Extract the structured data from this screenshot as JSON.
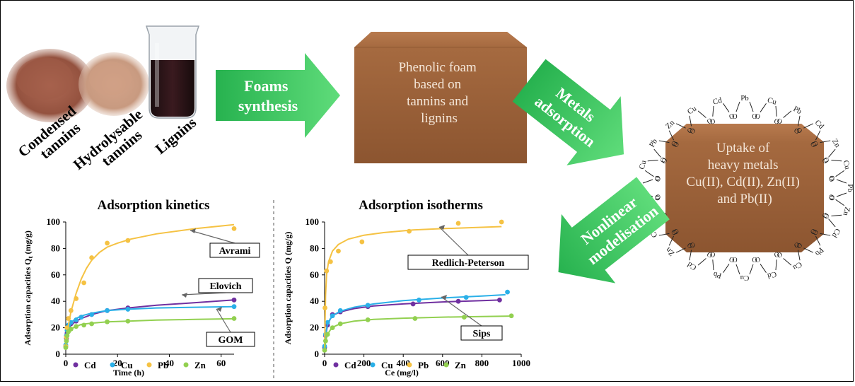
{
  "materials": {
    "condensed": [
      "Condensed",
      "tannins"
    ],
    "hydrolysable": [
      "Hydrolysable",
      "tannins"
    ],
    "lignins": "Lignins"
  },
  "arrows": {
    "synthesis": [
      "Foams",
      "synthesis"
    ],
    "adsorption": [
      "Metals",
      "adsorption"
    ],
    "modelisation": [
      "Nonlinear",
      "modelisation"
    ]
  },
  "foam_text": [
    "Phenolic foam",
    "based on",
    "tannins and",
    "lignins"
  ],
  "uptake_text": [
    "Uptake of",
    "heavy metals",
    "Cu(II), Cd(II), Zn(II)",
    "and Pb(II)"
  ],
  "metal_labels": [
    "Pb",
    "Cu",
    "Pb",
    "Cd",
    "Zn",
    "Cu",
    "Pb",
    "Zn",
    "Cd",
    "Pb",
    "Cu",
    "Cd",
    "Cu",
    "Pb",
    "Cd",
    "Zn",
    "Cu",
    "Pb",
    "Cd",
    "Cu",
    "Pb",
    "Zn",
    "Cu",
    "Cd"
  ],
  "colors": {
    "Cd": "#7030a0",
    "Cu": "#2ab0e8",
    "Pb": "#f5c243",
    "Zn": "#92d050",
    "arrow": "#2ec45a",
    "foam": "#a4683c"
  },
  "chart_data": [
    {
      "type": "scatter",
      "title": "Adsorption kinetics",
      "xlabel": "Time (h)",
      "ylabel": "Adsorption capacities Q",
      "ylabel_sub": "t",
      "ylabel_unit": " (mg/g)",
      "xlim": [
        0,
        65
      ],
      "ylim": [
        0,
        100
      ],
      "xticks": [
        0,
        20,
        40,
        60
      ],
      "yticks": [
        0,
        20,
        40,
        60,
        80,
        100
      ],
      "grid": false,
      "legend": "bottom-left",
      "annotations": [
        "Avrami",
        "Elovich",
        "GOM"
      ],
      "series": [
        {
          "name": "Cd",
          "x": [
            0,
            0.25,
            0.5,
            1,
            2,
            4,
            6,
            10,
            16,
            24,
            65
          ],
          "y": [
            6,
            12,
            16,
            20,
            23,
            25,
            28,
            30,
            33,
            35,
            41
          ],
          "fit_x": [
            0,
            0.5,
            1,
            2,
            4,
            6,
            10,
            16,
            24,
            35,
            50,
            65
          ],
          "fit_y": [
            8,
            15,
            19,
            22,
            25,
            27,
            30,
            33,
            35,
            37,
            39,
            41
          ]
        },
        {
          "name": "Cu",
          "x": [
            0,
            0.25,
            0.5,
            1,
            2,
            4,
            6,
            10,
            16,
            24,
            65
          ],
          "y": [
            7,
            14,
            18,
            22,
            24,
            26,
            28,
            30,
            33,
            34,
            36
          ],
          "fit_x": [
            0,
            0.5,
            1,
            2,
            4,
            6,
            10,
            16,
            24,
            35,
            50,
            65
          ],
          "fit_y": [
            9,
            17,
            21,
            24,
            27,
            29,
            31,
            33,
            34,
            35,
            35.5,
            36
          ]
        },
        {
          "name": "Pb",
          "x": [
            0,
            0.25,
            0.5,
            1,
            2,
            4,
            7,
            10,
            16,
            24,
            65
          ],
          "y": [
            6,
            13,
            20,
            27,
            33,
            42,
            54,
            73,
            84,
            86,
            95
          ],
          "fit_x": [
            0,
            1,
            2,
            4,
            6,
            8,
            10,
            13,
            16,
            20,
            25,
            35,
            50,
            65
          ],
          "fit_y": [
            8,
            22,
            32,
            46,
            57,
            65,
            71,
            77,
            81,
            84,
            87,
            91,
            95,
            98
          ]
        },
        {
          "name": "Zn",
          "x": [
            0,
            0.25,
            0.5,
            1,
            2,
            4,
            7,
            10,
            16,
            24,
            65
          ],
          "y": [
            5,
            10,
            14,
            17,
            19,
            21,
            22,
            23,
            24.5,
            25,
            27
          ],
          "fit_x": [
            0,
            0.5,
            1,
            2,
            4,
            6,
            10,
            16,
            24,
            35,
            50,
            65
          ],
          "fit_y": [
            7,
            13,
            16,
            19,
            21,
            22.5,
            23.5,
            24.5,
            25,
            25.8,
            26.3,
            26.8
          ]
        }
      ]
    },
    {
      "type": "scatter",
      "title": "Adsorption isotherms",
      "xlabel": "Ce (mg/l)",
      "ylabel": "Adsorption capacities Q (mg/g)",
      "xlim": [
        0,
        1000
      ],
      "ylim": [
        0,
        100
      ],
      "xticks": [
        0,
        200,
        400,
        600,
        800,
        1000
      ],
      "yticks": [
        0,
        20,
        40,
        60,
        80,
        100
      ],
      "grid": false,
      "legend": "bottom",
      "annotations": [
        "Redlich-Peterson",
        "Sips"
      ],
      "series": [
        {
          "name": "Cd",
          "x": [
            0,
            5,
            15,
            40,
            80,
            220,
            450,
            680,
            890
          ],
          "y": [
            5,
            14,
            22,
            30,
            32,
            36,
            38,
            40,
            41
          ],
          "fit_x": [
            0,
            5,
            15,
            30,
            50,
            80,
            150,
            250,
            400,
            600,
            800,
            900
          ],
          "fit_y": [
            4,
            14,
            22,
            27,
            30,
            32,
            34.5,
            36.5,
            38,
            39.5,
            40.5,
            41
          ]
        },
        {
          "name": "Cu",
          "x": [
            0,
            5,
            15,
            40,
            80,
            220,
            480,
            720,
            930
          ],
          "y": [
            6,
            15,
            24,
            29,
            33,
            37,
            41,
            43,
            47
          ],
          "fit_x": [
            0,
            5,
            15,
            30,
            50,
            80,
            150,
            250,
            400,
            600,
            800,
            920
          ],
          "fit_y": [
            5,
            15,
            23,
            27,
            30,
            32.5,
            35.5,
            38,
            40.5,
            42.5,
            44,
            45
          ]
        },
        {
          "name": "Pb",
          "x": [
            2,
            10,
            30,
            70,
            190,
            430,
            680,
            900
          ],
          "y": [
            35,
            63,
            70,
            78,
            85,
            93,
            99,
            100
          ],
          "fit_x": [
            0,
            5,
            10,
            20,
            40,
            70,
            120,
            200,
            300,
            450,
            600,
            800,
            900
          ],
          "fit_y": [
            5,
            45,
            60,
            70,
            78,
            83,
            87,
            90,
            92,
            94,
            95,
            96,
            96.5
          ]
        },
        {
          "name": "Zn",
          "x": [
            0,
            5,
            15,
            40,
            80,
            220,
            460,
            710,
            950
          ],
          "y": [
            3,
            10,
            15,
            20,
            23,
            26,
            27,
            28,
            29
          ],
          "fit_x": [
            0,
            5,
            15,
            30,
            50,
            80,
            150,
            250,
            400,
            600,
            800,
            950
          ],
          "fit_y": [
            3,
            10,
            15,
            18.5,
            21,
            23,
            25,
            26.3,
            27.2,
            28,
            28.5,
            28.8
          ]
        }
      ]
    }
  ]
}
